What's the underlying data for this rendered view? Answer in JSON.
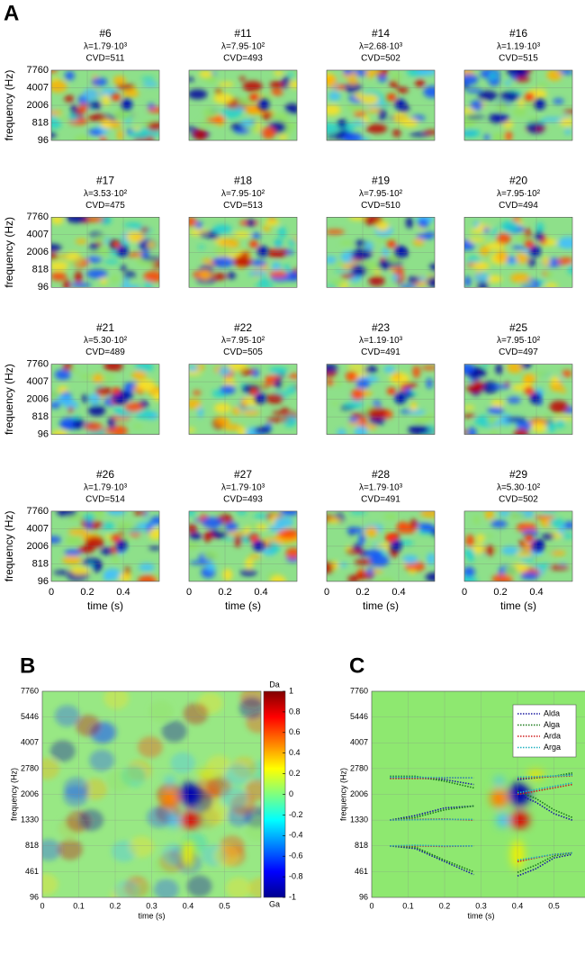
{
  "chart_data": [
    {
      "type": "heatmap-grid",
      "label": "A",
      "ylabel": "frequency (Hz)",
      "xlabel": "time (s)",
      "xlim": [
        0,
        0.6
      ],
      "xticks": [
        0,
        0.2,
        0.4
      ],
      "yticks": [
        96,
        818,
        2006,
        4007,
        7760
      ],
      "panels": [
        {
          "title": "#6",
          "lambda": "λ=1.79·10³",
          "cvd": "CVD=511"
        },
        {
          "title": "#11",
          "lambda": "λ=7.95·10²",
          "cvd": "CVD=493"
        },
        {
          "title": "#14",
          "lambda": "λ=2.68·10³",
          "cvd": "CVD=502"
        },
        {
          "title": "#16",
          "lambda": "λ=1.19·10³",
          "cvd": "CVD=515"
        },
        {
          "title": "#17",
          "lambda": "λ=3.53·10²",
          "cvd": "CVD=475"
        },
        {
          "title": "#18",
          "lambda": "λ=7.95·10²",
          "cvd": "CVD=513"
        },
        {
          "title": "#19",
          "lambda": "λ=7.95·10²",
          "cvd": "CVD=510"
        },
        {
          "title": "#20",
          "lambda": "λ=7.95·10²",
          "cvd": "CVD=494"
        },
        {
          "title": "#21",
          "lambda": "λ=5.30·10²",
          "cvd": "CVD=489"
        },
        {
          "title": "#22",
          "lambda": "λ=7.95·10²",
          "cvd": "CVD=505"
        },
        {
          "title": "#23",
          "lambda": "λ=1.19·10³",
          "cvd": "CVD=491"
        },
        {
          "title": "#25",
          "lambda": "λ=7.95·10²",
          "cvd": "CVD=497"
        },
        {
          "title": "#26",
          "lambda": "λ=1.79·10³",
          "cvd": "CVD=514"
        },
        {
          "title": "#27",
          "lambda": "λ=1.79·10³",
          "cvd": "CVD=493"
        },
        {
          "title": "#28",
          "lambda": "λ=1.79·10³",
          "cvd": "CVD=491"
        },
        {
          "title": "#29",
          "lambda": "λ=5.30·10²",
          "cvd": "CVD=502"
        }
      ]
    },
    {
      "type": "heatmap",
      "label": "B",
      "ylabel": "frequency (Hz)",
      "xlabel": "time (s)",
      "xlim": [
        0,
        0.6
      ],
      "xticks": [
        0,
        0.1,
        0.2,
        0.3,
        0.4,
        0.5
      ],
      "yticks": [
        96,
        461,
        818,
        1330,
        2006,
        2780,
        4007,
        5446,
        7760
      ],
      "colorbar": {
        "ylim": [
          -1,
          1
        ],
        "yticks": [
          1,
          0.8,
          0.6,
          0.4,
          0.2,
          0,
          -0.2,
          -0.4,
          -0.6,
          -0.8,
          -1
        ],
        "top_label": "Da",
        "bottom_label": "Ga"
      }
    },
    {
      "type": "formant",
      "label": "C",
      "ylabel": "frequency (Hz)",
      "xlabel": "time (s)",
      "xlim": [
        0,
        0.6
      ],
      "xticks": [
        0,
        0.1,
        0.2,
        0.3,
        0.4,
        0.5
      ],
      "yticks": [
        96,
        461,
        818,
        1330,
        2006,
        2780,
        4007,
        5446,
        7760
      ],
      "x": [
        0.05,
        0.12,
        0.2,
        0.28,
        null,
        0.4,
        0.45,
        0.5,
        0.55,
        null,
        0.05,
        0.12,
        0.2,
        0.28,
        null,
        0.4,
        0.45,
        0.5,
        0.55,
        null,
        0.05,
        0.12,
        0.2,
        0.28,
        null,
        0.4,
        0.45,
        0.5,
        0.55
      ],
      "series": [
        {
          "name": "Alda",
          "color": "#1a1aa0",
          "values": [
            818,
            780,
            600,
            420,
            null,
            400,
            500,
            650,
            700,
            null,
            1330,
            1450,
            1650,
            1700,
            null,
            2006,
            1800,
            1500,
            1330,
            null,
            2500,
            2500,
            2450,
            2300,
            null,
            2450,
            2500,
            2550,
            2600
          ]
        },
        {
          "name": "Alga",
          "color": "#1a7a1a",
          "values": [
            818,
            800,
            620,
            460,
            null,
            450,
            550,
            680,
            720,
            null,
            1330,
            1400,
            1600,
            1700,
            null,
            2100,
            1900,
            1600,
            1400,
            null,
            2550,
            2550,
            2400,
            2200,
            null,
            2500,
            2500,
            2550,
            2650
          ]
        },
        {
          "name": "Arda",
          "color": "#d02020",
          "values": [
            818,
            818,
            810,
            818,
            null,
            600,
            650,
            700,
            720,
            null,
            1330,
            1350,
            1360,
            1330,
            null,
            2006,
            2100,
            2200,
            2300,
            null,
            2480,
            2480,
            2500,
            2500,
            null,
            2500,
            2520,
            2540,
            2560
          ]
        },
        {
          "name": "Arga",
          "color": "#20b0c0",
          "values": [
            818,
            830,
            818,
            818,
            null,
            620,
            660,
            700,
            720,
            null,
            1330,
            1340,
            1350,
            1350,
            null,
            2050,
            2150,
            2250,
            2350,
            null,
            2520,
            2520,
            2510,
            2500,
            null,
            2520,
            2540,
            2560,
            2580
          ]
        }
      ]
    }
  ]
}
